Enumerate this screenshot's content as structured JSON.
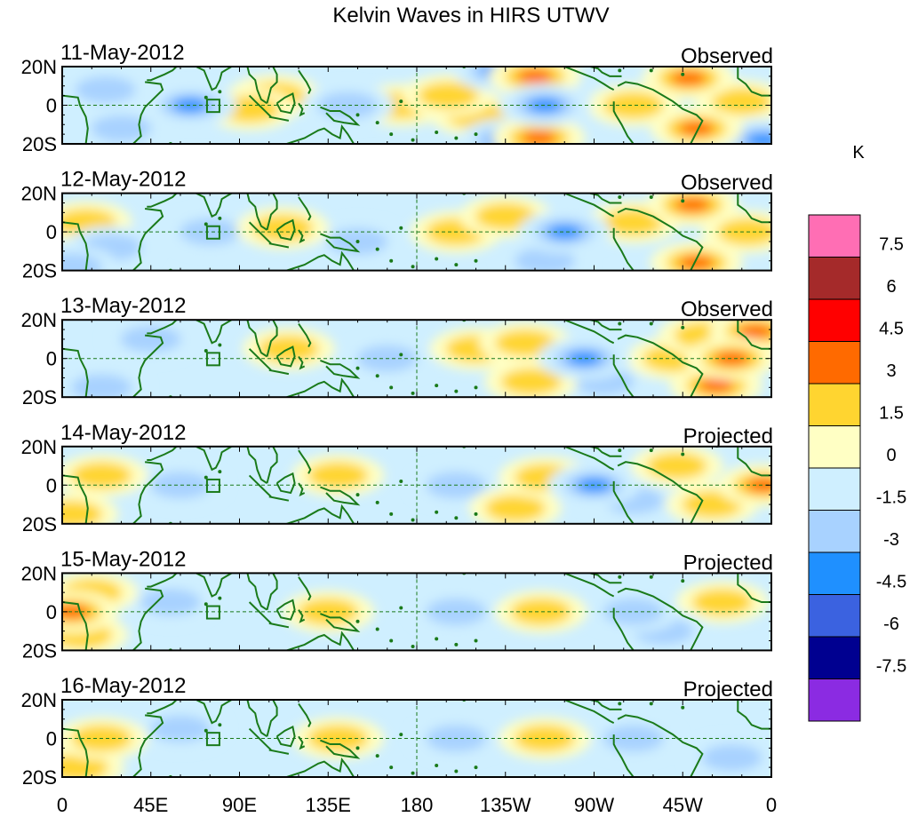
{
  "chart_data": {
    "type": "heatmap",
    "title": "Kelvin Waves in HIRS UTWV",
    "units_label": "K",
    "x_ticks": [
      "0",
      "45E",
      "90E",
      "135E",
      "180",
      "135W",
      "90W",
      "45W",
      "0"
    ],
    "y_ticks": [
      "20N",
      "0",
      "20S"
    ],
    "xlim_deg_east": [
      0,
      360
    ],
    "ylim_deg": [
      -20,
      20
    ],
    "colorbar": {
      "levels": [
        "7.5",
        "6",
        "4.5",
        "3",
        "1.5",
        "0",
        "-1.5",
        "-3",
        "-4.5",
        "-6",
        "-7.5"
      ],
      "colors": [
        "#ff6eb4",
        "#a52a2a",
        "#ff0000",
        "#ff6a00",
        "#ffd530",
        "#ffffc4",
        "#cfefff",
        "#a8d2ff",
        "#1f90ff",
        "#3b62e0",
        "#000090",
        "#8b2be2"
      ]
    },
    "panels": [
      {
        "date": "11-May-2012",
        "label": "Observed",
        "anomalies": [
          {
            "lon": 22,
            "lat": 8,
            "v": -1.6
          },
          {
            "lon": 30,
            "lat": -12,
            "v": -2.0
          },
          {
            "lon": 65,
            "lat": 0,
            "v": -3.2
          },
          {
            "lon": 95,
            "lat": -2,
            "v": 2.2
          },
          {
            "lon": 108,
            "lat": 5,
            "v": 2.0
          },
          {
            "lon": 145,
            "lat": 0,
            "v": -2.0
          },
          {
            "lon": 172,
            "lat": 0,
            "v": 1.6
          },
          {
            "lon": 196,
            "lat": 5,
            "v": 2.2
          },
          {
            "lon": 210,
            "lat": -5,
            "v": 2.0
          },
          {
            "lon": 222,
            "lat": 18,
            "v": -3.5
          },
          {
            "lon": 240,
            "lat": 15,
            "v": 3.5
          },
          {
            "lon": 245,
            "lat": 0,
            "v": -4.0
          },
          {
            "lon": 225,
            "lat": -18,
            "v": -3.0
          },
          {
            "lon": 242,
            "lat": -17,
            "v": 3.5
          },
          {
            "lon": 290,
            "lat": 0,
            "v": 2.0
          },
          {
            "lon": 318,
            "lat": 14,
            "v": 3.5
          },
          {
            "lon": 322,
            "lat": -12,
            "v": 3.2
          },
          {
            "lon": 345,
            "lat": 2,
            "v": 2.2
          },
          {
            "lon": 356,
            "lat": -18,
            "v": -3.0
          }
        ]
      },
      {
        "date": "12-May-2012",
        "label": "Observed",
        "anomalies": [
          {
            "lon": 12,
            "lat": 5,
            "v": 1.8
          },
          {
            "lon": 25,
            "lat": -8,
            "v": -1.8
          },
          {
            "lon": 5,
            "lat": -18,
            "v": -2.8
          },
          {
            "lon": 75,
            "lat": 0,
            "v": -1.7
          },
          {
            "lon": 112,
            "lat": 2,
            "v": 2.2
          },
          {
            "lon": 150,
            "lat": -5,
            "v": -1.7
          },
          {
            "lon": 200,
            "lat": 0,
            "v": 2.2
          },
          {
            "lon": 225,
            "lat": 8,
            "v": 2.5
          },
          {
            "lon": 255,
            "lat": 0,
            "v": -3.5
          },
          {
            "lon": 245,
            "lat": -15,
            "v": -2.2
          },
          {
            "lon": 290,
            "lat": 5,
            "v": 2.0
          },
          {
            "lon": 320,
            "lat": 14,
            "v": 3.5
          },
          {
            "lon": 322,
            "lat": -16,
            "v": 3.5
          },
          {
            "lon": 348,
            "lat": 0,
            "v": 1.8
          }
        ]
      },
      {
        "date": "13-May-2012",
        "label": "Observed",
        "anomalies": [
          {
            "lon": 20,
            "lat": -15,
            "v": -2.0
          },
          {
            "lon": 45,
            "lat": 10,
            "v": -1.6
          },
          {
            "lon": 115,
            "lat": 5,
            "v": 1.8
          },
          {
            "lon": 165,
            "lat": 0,
            "v": -1.7
          },
          {
            "lon": 210,
            "lat": 5,
            "v": 2.0
          },
          {
            "lon": 235,
            "lat": 8,
            "v": 2.5
          },
          {
            "lon": 238,
            "lat": -12,
            "v": 2.5
          },
          {
            "lon": 265,
            "lat": 0,
            "v": -4.2
          },
          {
            "lon": 275,
            "lat": -12,
            "v": -2.0
          },
          {
            "lon": 310,
            "lat": 0,
            "v": 2.0
          },
          {
            "lon": 326,
            "lat": 12,
            "v": 2.8
          },
          {
            "lon": 340,
            "lat": 0,
            "v": 3.8
          },
          {
            "lon": 332,
            "lat": -14,
            "v": 3.5
          },
          {
            "lon": 352,
            "lat": 14,
            "v": 3.0
          }
        ]
      },
      {
        "date": "14-May-2012",
        "label": "Projected",
        "anomalies": [
          {
            "lon": 5,
            "lat": -15,
            "v": 2.0
          },
          {
            "lon": 20,
            "lat": 5,
            "v": 1.8
          },
          {
            "lon": 60,
            "lat": 0,
            "v": -1.6
          },
          {
            "lon": 140,
            "lat": 5,
            "v": 1.6
          },
          {
            "lon": 200,
            "lat": 0,
            "v": -1.6
          },
          {
            "lon": 245,
            "lat": 4,
            "v": 2.5
          },
          {
            "lon": 230,
            "lat": -12,
            "v": 2.0
          },
          {
            "lon": 270,
            "lat": 0,
            "v": -4.0
          },
          {
            "lon": 290,
            "lat": -8,
            "v": -2.0
          },
          {
            "lon": 312,
            "lat": 10,
            "v": 2.0
          },
          {
            "lon": 330,
            "lat": -10,
            "v": 2.0
          },
          {
            "lon": 356,
            "lat": 0,
            "v": 3.8
          }
        ]
      },
      {
        "date": "15-May-2012",
        "label": "Projected",
        "anomalies": [
          {
            "lon": 5,
            "lat": 0,
            "v": 3.8
          },
          {
            "lon": 15,
            "lat": 10,
            "v": 2.0
          },
          {
            "lon": 10,
            "lat": -12,
            "v": 1.8
          },
          {
            "lon": 55,
            "lat": 5,
            "v": -1.6
          },
          {
            "lon": 135,
            "lat": 0,
            "v": 1.6
          },
          {
            "lon": 200,
            "lat": 0,
            "v": -1.6
          },
          {
            "lon": 243,
            "lat": 0,
            "v": 2.5
          },
          {
            "lon": 290,
            "lat": 0,
            "v": -2.2
          },
          {
            "lon": 305,
            "lat": -10,
            "v": -1.8
          },
          {
            "lon": 335,
            "lat": 5,
            "v": 1.6
          }
        ]
      },
      {
        "date": "16-May-2012",
        "label": "Projected",
        "anomalies": [
          {
            "lon": 20,
            "lat": 0,
            "v": 2.0
          },
          {
            "lon": 8,
            "lat": -15,
            "v": 1.6
          },
          {
            "lon": 60,
            "lat": 5,
            "v": -1.6
          },
          {
            "lon": 140,
            "lat": 0,
            "v": 1.6
          },
          {
            "lon": 200,
            "lat": 0,
            "v": -1.6
          },
          {
            "lon": 245,
            "lat": 0,
            "v": 2.2
          },
          {
            "lon": 290,
            "lat": 0,
            "v": -1.6
          },
          {
            "lon": 340,
            "lat": -10,
            "v": -1.6
          }
        ]
      }
    ]
  }
}
